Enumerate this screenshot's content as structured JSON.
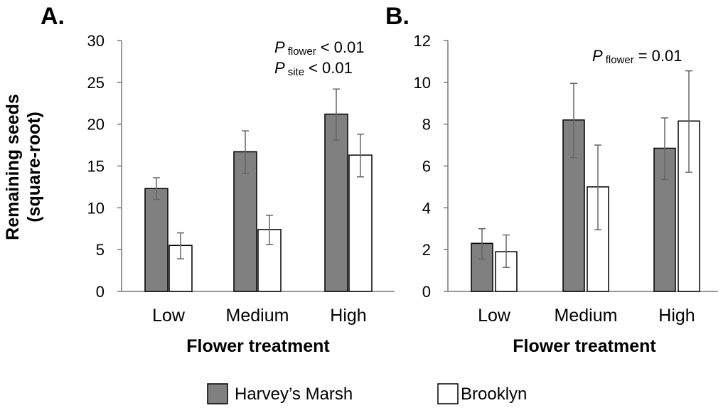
{
  "ylabel_line1": "Remaining seeds",
  "ylabel_line2": "(square-root)",
  "legend": [
    {
      "name": "Harvey’s Marsh",
      "color": "#808080"
    },
    {
      "name": "Brooklyn",
      "color": "#ffffff"
    }
  ],
  "chart_data": [
    {
      "type": "bar",
      "panel_label": "A.",
      "categories": [
        "Low",
        "Medium",
        "High"
      ],
      "series": [
        {
          "name": "Harvey’s Marsh",
          "values": [
            12.3,
            16.7,
            21.2
          ],
          "err_low": [
            11.0,
            14.1,
            18.1
          ],
          "err_high": [
            13.6,
            19.2,
            24.2
          ]
        },
        {
          "name": "Brooklyn",
          "values": [
            5.5,
            7.4,
            16.3
          ],
          "err_low": [
            3.9,
            5.6,
            13.7
          ],
          "err_high": [
            7.0,
            9.1,
            18.8
          ]
        }
      ],
      "ylim": [
        0,
        30
      ],
      "yticks": [
        0,
        5,
        10,
        15,
        20,
        25,
        30
      ],
      "xlabel": "Flower treatment",
      "ylabel": "Remaining seeds (square-root)",
      "annotations": [
        {
          "P": "P",
          "sub": "flower",
          "text": "< 0.01"
        },
        {
          "P": "P",
          "sub": "site",
          "text": "< 0.01"
        }
      ]
    },
    {
      "type": "bar",
      "panel_label": "B.",
      "categories": [
        "Low",
        "Medium",
        "High"
      ],
      "series": [
        {
          "name": "Harvey’s Marsh",
          "values": [
            2.3,
            8.2,
            6.85
          ],
          "err_low": [
            1.55,
            6.4,
            5.35
          ],
          "err_high": [
            3.0,
            9.95,
            8.3
          ]
        },
        {
          "name": "Brooklyn",
          "values": [
            1.9,
            5.0,
            8.15
          ],
          "err_low": [
            1.15,
            2.95,
            5.7
          ],
          "err_high": [
            2.7,
            7.0,
            10.55
          ]
        }
      ],
      "ylim": [
        0,
        12
      ],
      "yticks": [
        0,
        2,
        4,
        6,
        8,
        10,
        12
      ],
      "xlabel": "Flower treatment",
      "ylabel": "",
      "annotations": [
        {
          "P": "P",
          "sub": "flower",
          "text": "= 0.01"
        }
      ]
    }
  ]
}
